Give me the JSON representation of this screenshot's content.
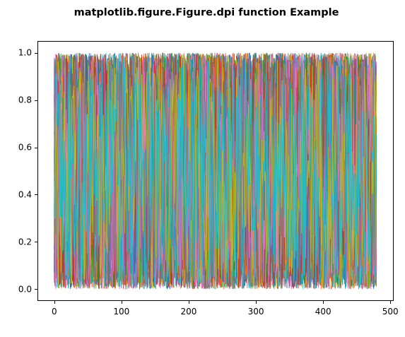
{
  "figure": {
    "background": "#ffffff"
  },
  "chart_data": {
    "type": "line",
    "title": "matplotlib.figure.Figure.dpi function Example",
    "xlabel": "",
    "ylabel": "",
    "xlim": [
      -25,
      505
    ],
    "ylim": [
      -0.05,
      1.05
    ],
    "x_ticks": [
      0,
      100,
      200,
      300,
      400,
      500
    ],
    "x_tick_labels": [
      "0",
      "100",
      "200",
      "300",
      "400",
      "500"
    ],
    "y_ticks": [
      0.0,
      0.2,
      0.4,
      0.6,
      0.8,
      1.0
    ],
    "y_tick_labels": [
      "0.0",
      "0.2",
      "0.4",
      "0.6",
      "0.8",
      "1.0"
    ],
    "grid": false,
    "legend": "none",
    "description_of_data": "480 line series of uniformly random values in [0, 1], each plotted against x = 0..479",
    "series_count": 480,
    "points_per_series": 480,
    "value_range": [
      0,
      1
    ],
    "colors": [
      "#1f77b4",
      "#ff7f0e",
      "#2ca02c",
      "#d62728",
      "#9467bd",
      "#8c564b",
      "#e377c2",
      "#7f7f7f",
      "#bcbd22",
      "#17becf"
    ]
  }
}
